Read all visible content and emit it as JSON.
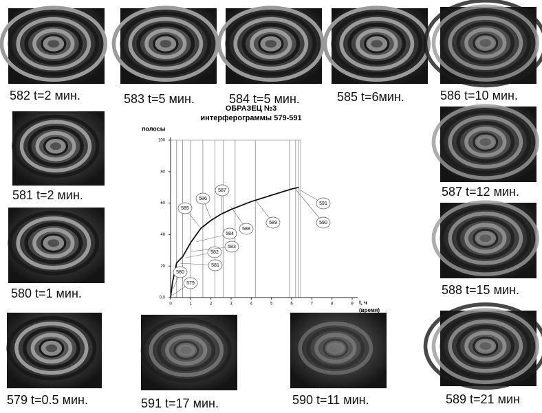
{
  "images": [
    {
      "caption": "582  t=2 мин."
    },
    {
      "caption": "583  t=5 мин."
    },
    {
      "caption": "584  t=5 мин."
    },
    {
      "caption": "585  t=6мин."
    },
    {
      "caption": "586  t=10 мин."
    },
    {
      "caption": "581  t=2 мин."
    },
    {
      "caption": "587  t=12 мин."
    },
    {
      "caption": "580    t=1 мин."
    },
    {
      "caption": "588  t=15 мин."
    },
    {
      "caption": "579 t=0.5 мин."
    },
    {
      "caption": "591  t=17 мин."
    },
    {
      "caption": "590 t=11 мин."
    },
    {
      "caption": "589  t=21 мин"
    }
  ],
  "chart_data": {
    "type": "line",
    "title": "ОБРАЗЕЦ  №3",
    "subtitle": "интерферограммы 579-591",
    "y_label": "полосы",
    "x_label": "t, ч",
    "x_sublabel": "(время)",
    "xlim": [
      0,
      9
    ],
    "ylim": [
      0,
      100
    ],
    "xticks": [
      0,
      1,
      2,
      3,
      4,
      5,
      6,
      7,
      8,
      9
    ],
    "yticks": [
      {
        "value": 0,
        "label": "0,0"
      },
      20,
      40,
      60,
      80,
      100
    ],
    "markers_x": [
      0.3,
      0.6,
      1,
      1.6,
      2.2,
      2.6,
      3.2,
      4.2,
      5.9,
      6.2,
      6.35
    ],
    "series": [
      {
        "color": "#111111",
        "x": [
          0,
          0.1,
          0.3,
          0.6,
          1,
          1.5,
          2,
          2.5,
          3,
          4,
          5,
          6,
          6.35
        ],
        "values": [
          0,
          10,
          22,
          26,
          35,
          44,
          49,
          53,
          56,
          61,
          65,
          69,
          70
        ]
      }
    ],
    "annotations": [
      "579",
      "580",
      "581",
      "582",
      "583",
      "584",
      "585",
      "586",
      "587",
      "588",
      "589",
      "590",
      "591"
    ]
  }
}
